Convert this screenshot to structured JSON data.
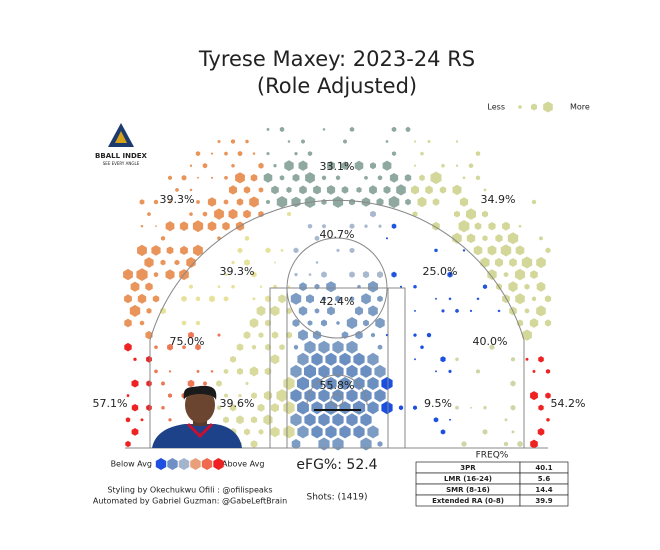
{
  "chart_data": {
    "type": "hexbin_shot_chart",
    "title": "Tyrese Maxey: 2023-24 RS",
    "subtitle": "(Role Adjusted)",
    "values": [
      33.1,
      39.3,
      34.9,
      40.7,
      39.3,
      25.0,
      42.4,
      75.0,
      40.0,
      55.8,
      57.1,
      39.6,
      9.5,
      54.2
    ],
    "value_labels": [
      "33.1%",
      "39.3%",
      "34.9%",
      "40.7%",
      "39.3%",
      "25.0%",
      "42.4%",
      "75.0%",
      "40.0%",
      "55.8%",
      "57.1%",
      "39.6%",
      "9.5%",
      "54.2%"
    ],
    "colors": [
      "#8fa8a0",
      "#e8945a",
      "#d3d89a",
      "#a7b8cf",
      "#e6e29a",
      "#2255dd",
      "#7c9cc4",
      "#ee7755",
      "#cfd6a6",
      "#6b8fc0",
      "#ee2222",
      "#d9da9e",
      "#1a4fe0",
      "#ee2222"
    ],
    "size_legend": [
      "Less",
      "More"
    ],
    "color_legend": [
      "Below Avg",
      "Above Avg"
    ],
    "color_scale": [
      "#1f4fe0",
      "#6f90c4",
      "#a3b4cc",
      "#e8a07a",
      "#ee6a50",
      "#ee2222"
    ],
    "efg": "eFG%: 52.4",
    "shots": "Shots: (1419)",
    "logo": {
      "name": "BBALL INDEX",
      "tagline": "SEE EVERY ANGLE"
    },
    "credits": [
      "Styling by Okechukwu Ofili : @ofilispeaks",
      "Automated by Gabriel Guzman: @GabeLeftBrain"
    ],
    "freq_table": {
      "title": "FREQ%",
      "rows": [
        [
          "3PR",
          40.1
        ],
        [
          "LMR (16-24)",
          5.6
        ],
        [
          "SMR (8-16)",
          14.4
        ],
        [
          "Extended RA (0-8)",
          39.9
        ]
      ]
    }
  }
}
